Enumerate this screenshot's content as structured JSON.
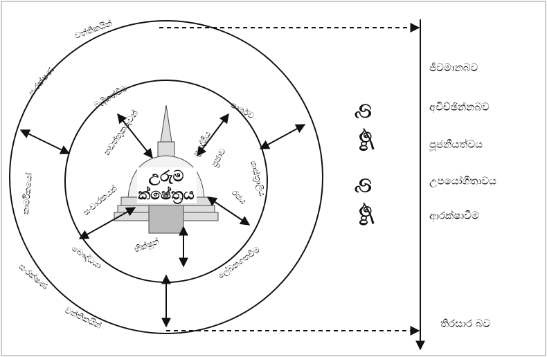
{
  "center": {
    "lines": [
      "උරුම",
      "ක්ෂේත්‍රය"
    ]
  },
  "outer_ring": [
    "වත්තිකයින්",
    "සංරක්ෂණ",
    "කාර්මිකයෝ",
    "සංරක්ෂණ",
    "වත්තිකයින්"
  ],
  "inner_ring": [
    "මැදිහත්වීම",
    "නඩත්තුකරුවන්",
    "පාර්ශව",
    "ප්‍රදේශීය",
    "ප්‍රජාව",
    "ශාස්ත්‍රාලිය",
    "සංචාරකයන්",
    "රජය",
    "බෞද්ධයා",
    "භික්ෂූන්",
    "ලේඛනගතවීම"
  ],
  "vertical_label": "ගුණ ගුණ",
  "values_list": [
    "ජීවමානබව",
    "අවිච්ඡින්නබව",
    "පූජනීයත්වය",
    "උපයෝගීතාවය",
    "ආරක්ෂාවීම"
  ],
  "bottom_value": "තිරසාර බව"
}
